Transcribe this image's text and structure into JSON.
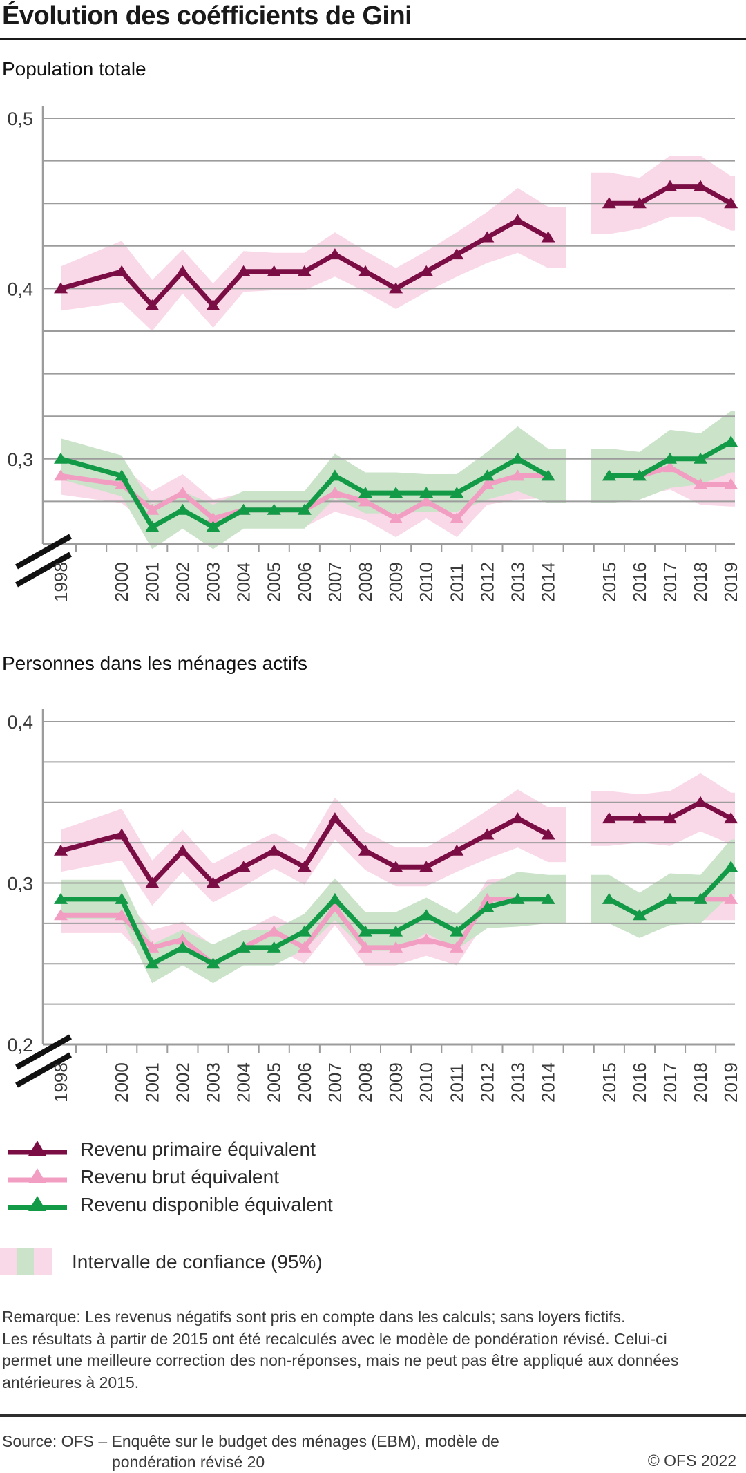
{
  "page_title": "Évolution des coéfficients de Gini",
  "chart_data": [
    {
      "type": "line",
      "title": "Population totale",
      "x": [
        1998,
        2000,
        2001,
        2002,
        2003,
        2004,
        2005,
        2006,
        2007,
        2008,
        2009,
        2010,
        2011,
        2012,
        2013,
        2014,
        2015,
        2016,
        2017,
        2018,
        2019
      ],
      "x_gap_between": [
        2014,
        2015
      ],
      "ylim": [
        0.25,
        0.5
      ],
      "grid_step": 0.025,
      "grid": true,
      "axis_break": true,
      "yticks": [
        {
          "label": "0,5",
          "value": 0.5
        },
        {
          "label": "0,4",
          "value": 0.4
        },
        {
          "label": "0,3",
          "value": 0.3
        }
      ],
      "series": [
        {
          "id": "primaire",
          "name": "Revenu primaire équivalent",
          "color": "#7B0D45",
          "band_color": "#F9D8E7",
          "values": [
            0.4,
            0.41,
            0.39,
            0.41,
            0.39,
            0.41,
            0.41,
            0.41,
            0.42,
            0.41,
            0.4,
            0.41,
            0.42,
            0.43,
            0.44,
            0.43,
            0.45,
            0.45,
            0.46,
            0.46,
            0.45
          ],
          "ci_halfwidth": [
            0.013,
            0.018,
            0.015,
            0.013,
            0.013,
            0.012,
            0.011,
            0.011,
            0.013,
            0.012,
            0.012,
            0.012,
            0.013,
            0.015,
            0.019,
            0.018,
            0.018,
            0.015,
            0.018,
            0.018,
            0.016
          ]
        },
        {
          "id": "brut",
          "name": "Revenu brut équivalent",
          "color": "#F29EC2",
          "band_color": "#F9D8E7",
          "values": [
            0.29,
            0.285,
            0.27,
            0.28,
            0.265,
            0.27,
            0.27,
            0.27,
            0.28,
            0.275,
            0.265,
            0.275,
            0.265,
            0.285,
            0.29,
            0.29,
            0.29,
            0.29,
            0.295,
            0.285,
            0.285
          ],
          "ci_halfwidth": [
            0.011,
            0.011,
            0.011,
            0.011,
            0.011,
            0.01,
            0.01,
            0.01,
            0.011,
            0.011,
            0.011,
            0.01,
            0.011,
            0.012,
            0.014,
            0.013,
            0.013,
            0.012,
            0.013,
            0.012,
            0.013
          ]
        },
        {
          "id": "disponible",
          "name": "Revenu disponible équivalent",
          "color": "#129A47",
          "band_color": "#CAE3C9",
          "values": [
            0.3,
            0.29,
            0.26,
            0.27,
            0.26,
            0.27,
            0.27,
            0.27,
            0.29,
            0.28,
            0.28,
            0.28,
            0.28,
            0.29,
            0.3,
            0.29,
            0.29,
            0.29,
            0.3,
            0.3,
            0.31
          ],
          "ci_halfwidth": [
            0.012,
            0.012,
            0.013,
            0.011,
            0.013,
            0.011,
            0.011,
            0.011,
            0.013,
            0.012,
            0.012,
            0.011,
            0.011,
            0.014,
            0.019,
            0.016,
            0.016,
            0.014,
            0.017,
            0.015,
            0.018
          ]
        }
      ]
    },
    {
      "type": "line",
      "title": "Personnes dans les ménages actifs",
      "x": [
        1998,
        2000,
        2001,
        2002,
        2003,
        2004,
        2005,
        2006,
        2007,
        2008,
        2009,
        2010,
        2011,
        2012,
        2013,
        2014,
        2015,
        2016,
        2017,
        2018,
        2019
      ],
      "x_gap_between": [
        2014,
        2015
      ],
      "ylim": [
        0.2,
        0.4
      ],
      "grid_step": 0.025,
      "grid": true,
      "axis_break": true,
      "yticks": [
        {
          "label": "0,4",
          "value": 0.4
        },
        {
          "label": "0,3",
          "value": 0.3
        },
        {
          "label": "0,2",
          "value": 0.2
        }
      ],
      "series": [
        {
          "id": "primaire",
          "name": "Revenu primaire équivalent",
          "color": "#7B0D45",
          "band_color": "#F9D8E7",
          "values": [
            0.32,
            0.33,
            0.3,
            0.32,
            0.3,
            0.31,
            0.32,
            0.31,
            0.34,
            0.32,
            0.31,
            0.31,
            0.32,
            0.33,
            0.34,
            0.33,
            0.34,
            0.34,
            0.34,
            0.35,
            0.34
          ],
          "ci_halfwidth": [
            0.013,
            0.016,
            0.014,
            0.013,
            0.012,
            0.012,
            0.011,
            0.011,
            0.013,
            0.012,
            0.012,
            0.012,
            0.013,
            0.015,
            0.018,
            0.017,
            0.017,
            0.015,
            0.017,
            0.018,
            0.016
          ]
        },
        {
          "id": "brut",
          "name": "Revenu brut équivalent",
          "color": "#F29EC2",
          "band_color": "#F9D8E7",
          "values": [
            0.28,
            0.28,
            0.26,
            0.265,
            0.25,
            0.26,
            0.27,
            0.26,
            0.285,
            0.26,
            0.26,
            0.265,
            0.26,
            0.29,
            0.29,
            0.29,
            0.29,
            0.28,
            0.29,
            0.29,
            0.29
          ],
          "ci_halfwidth": [
            0.011,
            0.011,
            0.011,
            0.011,
            0.011,
            0.01,
            0.01,
            0.01,
            0.011,
            0.011,
            0.011,
            0.01,
            0.011,
            0.012,
            0.014,
            0.013,
            0.013,
            0.012,
            0.013,
            0.013,
            0.013
          ]
        },
        {
          "id": "disponible",
          "name": "Revenu disponible équivalent",
          "color": "#129A47",
          "band_color": "#CAE3C9",
          "values": [
            0.29,
            0.29,
            0.25,
            0.26,
            0.25,
            0.26,
            0.26,
            0.27,
            0.29,
            0.27,
            0.27,
            0.28,
            0.27,
            0.285,
            0.29,
            0.29,
            0.29,
            0.28,
            0.29,
            0.29,
            0.31
          ],
          "ci_halfwidth": [
            0.012,
            0.012,
            0.012,
            0.011,
            0.012,
            0.011,
            0.011,
            0.011,
            0.013,
            0.012,
            0.012,
            0.011,
            0.011,
            0.013,
            0.017,
            0.015,
            0.015,
            0.014,
            0.016,
            0.015,
            0.017
          ]
        }
      ]
    }
  ],
  "legend": {
    "items": [
      {
        "id": "primaire",
        "label": "Revenu primaire équivalent",
        "color": "#7B0D45"
      },
      {
        "id": "brut",
        "label": "Revenu brut équivalent",
        "color": "#F29EC2"
      },
      {
        "id": "disponible",
        "label": "Revenu disponible équivalent",
        "color": "#129A47"
      }
    ]
  },
  "ci_legend": {
    "label": "Intervalle de confiance (95%)",
    "stripe_colors": [
      "#F9D8E7",
      "#CAE3C9",
      "#F9D8E7"
    ]
  },
  "note_lines": [
    "Remarque: Les revenus négatifs sont pris en compte dans les calculs; sans loyers fictifs.",
    "Les résultats à partir de 2015 ont été recalculés avec le modèle de pondération révisé. Celui-ci",
    "permet une meilleure correction des non-réponses, mais ne peut pas être appliqué aux données",
    "antérieures à 2015."
  ],
  "footer": {
    "source_line1": "Source: OFS – Enquête sur le budget des ménages (EBM), modèle de",
    "source_line2": "pondération révisé 20",
    "copyright": "© OFS 2022"
  },
  "colors": {
    "grid": "#9C9C9C",
    "axis_break": "#111111",
    "text": "#3A3A3A"
  }
}
